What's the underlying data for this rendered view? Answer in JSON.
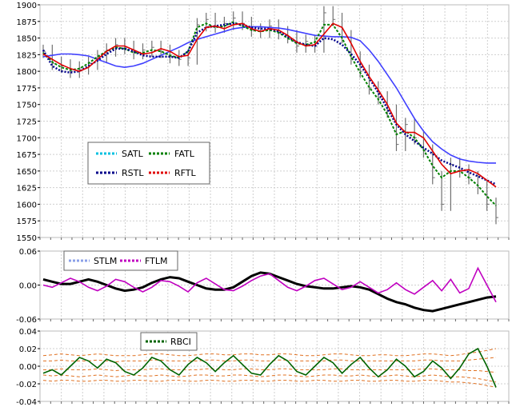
{
  "chart_data": [
    {
      "type": "line",
      "panel": "price",
      "ylim": [
        1550,
        1900
      ],
      "y_ticks": [
        "1550",
        "1575",
        "1600",
        "1625",
        "1650",
        "1675",
        "1700",
        "1725",
        "1750",
        "1775",
        "1800",
        "1825",
        "1850",
        "1875",
        "1900"
      ],
      "grid": true,
      "legend": "left-middle",
      "x": [
        0,
        20,
        40,
        60,
        80,
        100,
        120,
        140,
        160,
        180,
        200,
        220,
        240,
        260,
        280,
        300,
        320,
        340,
        360,
        380,
        400,
        420,
        440,
        460,
        480,
        500,
        520,
        540,
        560,
        580,
        600,
        620,
        640,
        660,
        680,
        700,
        720,
        740,
        760,
        780,
        800,
        820,
        840,
        860,
        880,
        900,
        920,
        940,
        960,
        980,
        1000
      ],
      "price_bars": {
        "close": [
          1830,
          1812,
          1808,
          1800,
          1805,
          1812,
          1822,
          1832,
          1840,
          1836,
          1828,
          1832,
          1836,
          1830,
          1822,
          1818,
          1820,
          1870,
          1878,
          1868,
          1872,
          1880,
          1872,
          1862,
          1860,
          1868,
          1858,
          1852,
          1838,
          1845,
          1838,
          1888,
          1878,
          1852,
          1820,
          1800,
          1775,
          1760,
          1740,
          1690,
          1720,
          1700,
          1680,
          1640,
          1600,
          1660,
          1650,
          1640,
          1625,
          1600,
          1580
        ]
      },
      "series": [
        {
          "name": "SATL",
          "color": "#4040ff",
          "values": [
            1822,
            1824,
            1826,
            1826,
            1825,
            1823,
            1818,
            1813,
            1808,
            1806,
            1808,
            1812,
            1818,
            1824,
            1830,
            1836,
            1843,
            1848,
            1852,
            1856,
            1860,
            1864,
            1866,
            1867,
            1867,
            1866,
            1865,
            1863,
            1860,
            1857,
            1854,
            1853,
            1852,
            1852,
            1851,
            1846,
            1832,
            1815,
            1795,
            1775,
            1752,
            1729,
            1710,
            1694,
            1683,
            1674,
            1668,
            1665,
            1663,
            1662,
            1662
          ]
        },
        {
          "name": "FATL",
          "color": "#008000",
          "values": [
            1828,
            1814,
            1806,
            1802,
            1804,
            1812,
            1822,
            1830,
            1836,
            1834,
            1828,
            1828,
            1832,
            1830,
            1824,
            1820,
            1830,
            1866,
            1872,
            1866,
            1868,
            1874,
            1868,
            1862,
            1860,
            1862,
            1858,
            1850,
            1842,
            1840,
            1844,
            1870,
            1870,
            1850,
            1822,
            1798,
            1776,
            1758,
            1735,
            1705,
            1710,
            1700,
            1682,
            1658,
            1640,
            1650,
            1650,
            1640,
            1628,
            1612,
            1598
          ]
        },
        {
          "name": "RSTL",
          "color": "#00008b",
          "values": [
            1832,
            1808,
            1800,
            1798,
            1800,
            1808,
            1816,
            1826,
            1834,
            1834,
            1830,
            1824,
            1822,
            1822,
            1822,
            1820,
            1830,
            1858,
            1866,
            1868,
            1870,
            1872,
            1870,
            1866,
            1864,
            1864,
            1860,
            1852,
            1844,
            1840,
            1838,
            1850,
            1848,
            1840,
            1826,
            1810,
            1790,
            1768,
            1744,
            1720,
            1705,
            1695,
            1685,
            1676,
            1666,
            1660,
            1655,
            1648,
            1642,
            1636,
            1630
          ]
        },
        {
          "name": "RFTL",
          "color": "#e00000",
          "values": [
            1826,
            1818,
            1810,
            1804,
            1800,
            1806,
            1818,
            1830,
            1838,
            1838,
            1832,
            1826,
            1828,
            1834,
            1830,
            1822,
            1824,
            1848,
            1866,
            1868,
            1864,
            1870,
            1872,
            1864,
            1860,
            1864,
            1862,
            1854,
            1844,
            1838,
            1840,
            1856,
            1872,
            1866,
            1842,
            1815,
            1792,
            1772,
            1750,
            1722,
            1708,
            1708,
            1700,
            1680,
            1660,
            1646,
            1650,
            1652,
            1646,
            1636,
            1626
          ]
        }
      ]
    },
    {
      "type": "line",
      "panel": "oscillator",
      "ylim": [
        -0.06,
        0.06
      ],
      "y_ticks": [
        "-0.06",
        "0.00",
        "0.06"
      ],
      "grid": true,
      "legend": "top-left",
      "x": [
        0,
        20,
        40,
        60,
        80,
        100,
        120,
        140,
        160,
        180,
        200,
        220,
        240,
        260,
        280,
        300,
        320,
        340,
        360,
        380,
        400,
        420,
        440,
        460,
        480,
        500,
        520,
        540,
        560,
        580,
        600,
        620,
        640,
        660,
        680,
        700,
        720,
        740,
        760,
        780,
        800,
        820,
        840,
        860,
        880,
        900,
        920,
        940,
        960,
        980,
        1000
      ],
      "series": [
        {
          "name": "STLM",
          "color": "#000000",
          "values": [
            0.01,
            0.006,
            0.002,
            0.002,
            0.006,
            0.01,
            0.006,
            0.0,
            -0.006,
            -0.01,
            -0.008,
            -0.004,
            0.004,
            0.01,
            0.014,
            0.012,
            0.006,
            0.0,
            -0.006,
            -0.008,
            -0.008,
            -0.004,
            0.006,
            0.016,
            0.022,
            0.02,
            0.014,
            0.008,
            0.002,
            -0.002,
            -0.004,
            -0.006,
            -0.006,
            -0.004,
            -0.002,
            -0.004,
            -0.008,
            -0.016,
            -0.024,
            -0.03,
            -0.034,
            -0.04,
            -0.044,
            -0.046,
            -0.042,
            -0.038,
            -0.034,
            -0.03,
            -0.026,
            -0.022,
            -0.02
          ]
        },
        {
          "name": "FTLM",
          "color": "#c000c0",
          "values": [
            0.0,
            -0.004,
            0.004,
            0.012,
            0.006,
            -0.004,
            -0.01,
            -0.002,
            0.01,
            0.006,
            -0.004,
            -0.012,
            -0.004,
            0.008,
            0.006,
            -0.002,
            -0.012,
            0.004,
            0.012,
            0.002,
            -0.008,
            -0.01,
            -0.002,
            0.008,
            0.016,
            0.02,
            0.008,
            -0.004,
            -0.01,
            -0.002,
            0.008,
            0.012,
            0.002,
            -0.008,
            -0.004,
            0.006,
            -0.004,
            -0.014,
            -0.008,
            0.004,
            -0.008,
            -0.016,
            -0.004,
            0.008,
            -0.01,
            0.01,
            -0.014,
            -0.006,
            0.03,
            0.0,
            -0.03
          ]
        }
      ]
    },
    {
      "type": "line",
      "panel": "rbci",
      "ylim": [
        -0.04,
        0.04
      ],
      "y_ticks": [
        "-0.04",
        "-0.02",
        "0.00",
        "0.02",
        "0.04"
      ],
      "grid": true,
      "legend": "top-center",
      "x": [
        0,
        20,
        40,
        60,
        80,
        100,
        120,
        140,
        160,
        180,
        200,
        220,
        240,
        260,
        280,
        300,
        320,
        340,
        360,
        380,
        400,
        420,
        440,
        460,
        480,
        500,
        520,
        540,
        560,
        580,
        600,
        620,
        640,
        660,
        680,
        700,
        720,
        740,
        760,
        780,
        800,
        820,
        840,
        860,
        880,
        900,
        920,
        940,
        960,
        980,
        1000
      ],
      "series": [
        {
          "name": "RBCI",
          "color": "#006400",
          "values": [
            -0.008,
            -0.004,
            -0.01,
            0.0,
            0.01,
            0.006,
            -0.002,
            0.008,
            0.004,
            -0.006,
            -0.01,
            -0.002,
            0.01,
            0.006,
            -0.004,
            -0.01,
            0.002,
            0.01,
            0.004,
            -0.006,
            0.004,
            0.012,
            0.002,
            -0.008,
            -0.01,
            0.002,
            0.012,
            0.006,
            -0.006,
            -0.01,
            0.0,
            0.01,
            0.004,
            -0.008,
            0.002,
            0.01,
            -0.002,
            -0.012,
            -0.004,
            0.008,
            0.0,
            -0.012,
            -0.006,
            0.006,
            -0.002,
            -0.014,
            -0.002,
            0.014,
            0.02,
            0.0,
            -0.024
          ]
        }
      ],
      "bands": [
        {
          "color": "#e07020",
          "values": [
            0.012,
            0.013,
            0.014,
            0.013,
            0.012,
            0.013,
            0.014,
            0.013,
            0.012,
            0.012,
            0.012,
            0.013,
            0.014,
            0.014,
            0.013,
            0.012,
            0.012,
            0.013,
            0.014,
            0.014,
            0.013,
            0.013,
            0.014,
            0.014,
            0.013,
            0.013,
            0.014,
            0.014,
            0.013,
            0.012,
            0.012,
            0.013,
            0.014,
            0.014,
            0.013,
            0.012,
            0.012,
            0.013,
            0.013,
            0.012,
            0.012,
            0.013,
            0.014,
            0.014,
            0.013,
            0.012,
            0.013,
            0.015,
            0.016,
            0.018,
            0.02
          ]
        },
        {
          "color": "#e07020",
          "values": [
            0.006,
            0.006,
            0.007,
            0.006,
            0.006,
            0.006,
            0.007,
            0.006,
            0.005,
            0.006,
            0.006,
            0.006,
            0.007,
            0.007,
            0.006,
            0.006,
            0.006,
            0.006,
            0.007,
            0.007,
            0.006,
            0.006,
            0.007,
            0.007,
            0.006,
            0.006,
            0.007,
            0.007,
            0.006,
            0.006,
            0.006,
            0.006,
            0.007,
            0.007,
            0.006,
            0.006,
            0.006,
            0.006,
            0.006,
            0.006,
            0.006,
            0.006,
            0.007,
            0.007,
            0.006,
            0.006,
            0.006,
            0.007,
            0.008,
            0.009,
            0.01
          ]
        },
        {
          "color": "#e07020",
          "values": [
            -0.004,
            -0.004,
            -0.003,
            -0.004,
            -0.004,
            -0.004,
            -0.003,
            -0.004,
            -0.005,
            -0.004,
            -0.004,
            -0.004,
            -0.003,
            -0.003,
            -0.004,
            -0.004,
            -0.004,
            -0.004,
            -0.003,
            -0.003,
            -0.004,
            -0.004,
            -0.003,
            -0.003,
            -0.004,
            -0.004,
            -0.003,
            -0.003,
            -0.004,
            -0.004,
            -0.004,
            -0.004,
            -0.003,
            -0.003,
            -0.004,
            -0.004,
            -0.004,
            -0.004,
            -0.004,
            -0.004,
            -0.004,
            -0.004,
            -0.003,
            -0.003,
            -0.004,
            -0.004,
            -0.004,
            -0.005,
            -0.005,
            -0.006,
            -0.007
          ]
        },
        {
          "color": "#e07020",
          "values": [
            -0.01,
            -0.011,
            -0.01,
            -0.011,
            -0.012,
            -0.011,
            -0.01,
            -0.011,
            -0.012,
            -0.011,
            -0.01,
            -0.011,
            -0.011,
            -0.01,
            -0.011,
            -0.012,
            -0.011,
            -0.01,
            -0.01,
            -0.011,
            -0.011,
            -0.01,
            -0.01,
            -0.011,
            -0.012,
            -0.011,
            -0.01,
            -0.01,
            -0.011,
            -0.012,
            -0.011,
            -0.01,
            -0.01,
            -0.011,
            -0.011,
            -0.01,
            -0.011,
            -0.012,
            -0.011,
            -0.01,
            -0.011,
            -0.012,
            -0.011,
            -0.01,
            -0.011,
            -0.012,
            -0.012,
            -0.013,
            -0.014,
            -0.016,
            -0.018
          ]
        },
        {
          "color": "#e07020",
          "values": [
            -0.016,
            -0.017,
            -0.016,
            -0.016,
            -0.017,
            -0.017,
            -0.016,
            -0.016,
            -0.017,
            -0.017,
            -0.016,
            -0.016,
            -0.017,
            -0.017,
            -0.016,
            -0.016,
            -0.017,
            -0.017,
            -0.016,
            -0.016,
            -0.017,
            -0.017,
            -0.016,
            -0.016,
            -0.017,
            -0.017,
            -0.016,
            -0.016,
            -0.017,
            -0.017,
            -0.016,
            -0.016,
            -0.017,
            -0.017,
            -0.016,
            -0.016,
            -0.017,
            -0.017,
            -0.016,
            -0.016,
            -0.017,
            -0.017,
            -0.016,
            -0.016,
            -0.017,
            -0.018,
            -0.018,
            -0.019,
            -0.02,
            -0.022,
            -0.024
          ]
        }
      ]
    }
  ]
}
